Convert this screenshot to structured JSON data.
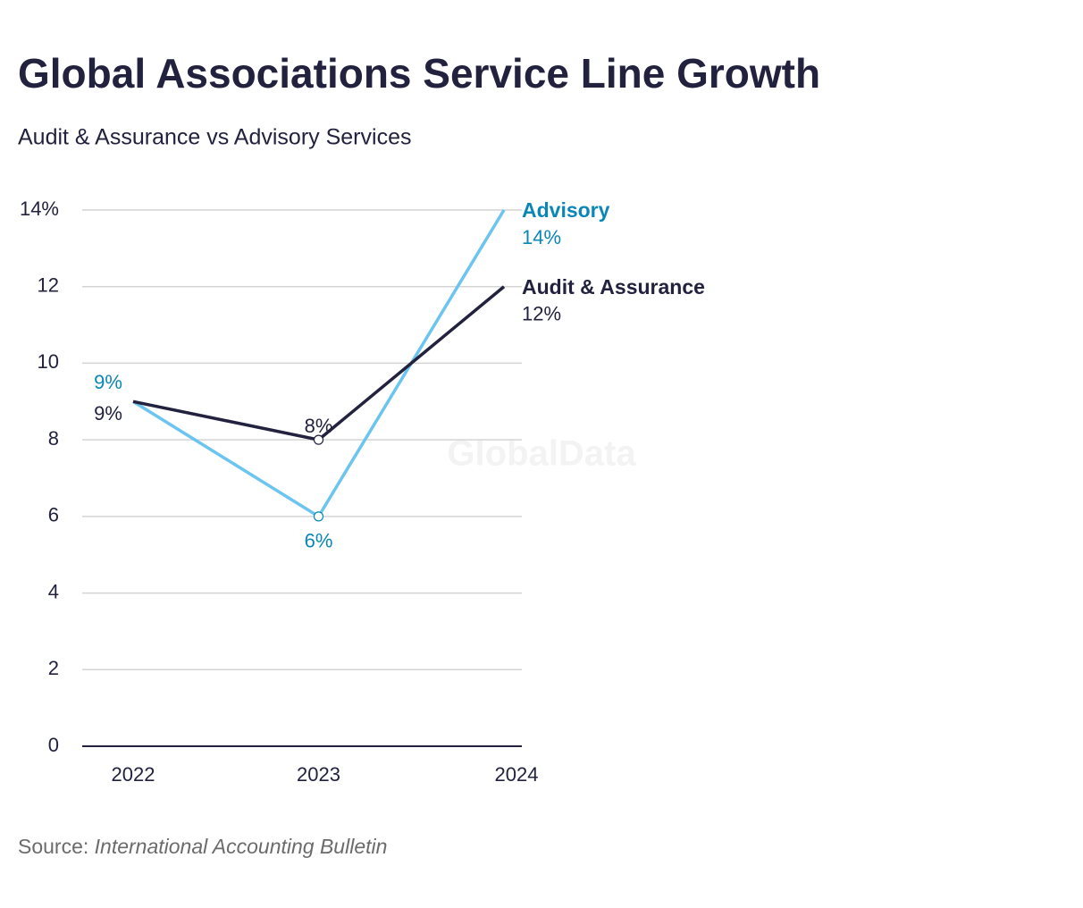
{
  "chart_data": {
    "type": "line",
    "title": "Global Associations Service Line Growth",
    "subtitle": "Audit & Assurance vs Advisory Services",
    "watermark": "GlobalData",
    "source_label": "Source:",
    "source": "International Accounting Bulletin",
    "categories": [
      "2022",
      "2023",
      "2024"
    ],
    "series": [
      {
        "name": "Advisory",
        "color": "#6cc4f0",
        "label_color": "#0a86b8",
        "values": [
          9,
          6,
          14
        ],
        "value_labels": [
          "9%",
          "6%",
          "14%"
        ]
      },
      {
        "name": "Audit & Assurance",
        "color": "#22223f",
        "label_color": "#22223f",
        "values": [
          9,
          8,
          12
        ],
        "value_labels": [
          "9%",
          "8%",
          "12%"
        ]
      }
    ],
    "ylim": [
      0,
      14
    ],
    "yticks": [
      0,
      2,
      4,
      6,
      8,
      10,
      12,
      {
        "value": 14,
        "label": "14%"
      }
    ],
    "grid": true
  }
}
